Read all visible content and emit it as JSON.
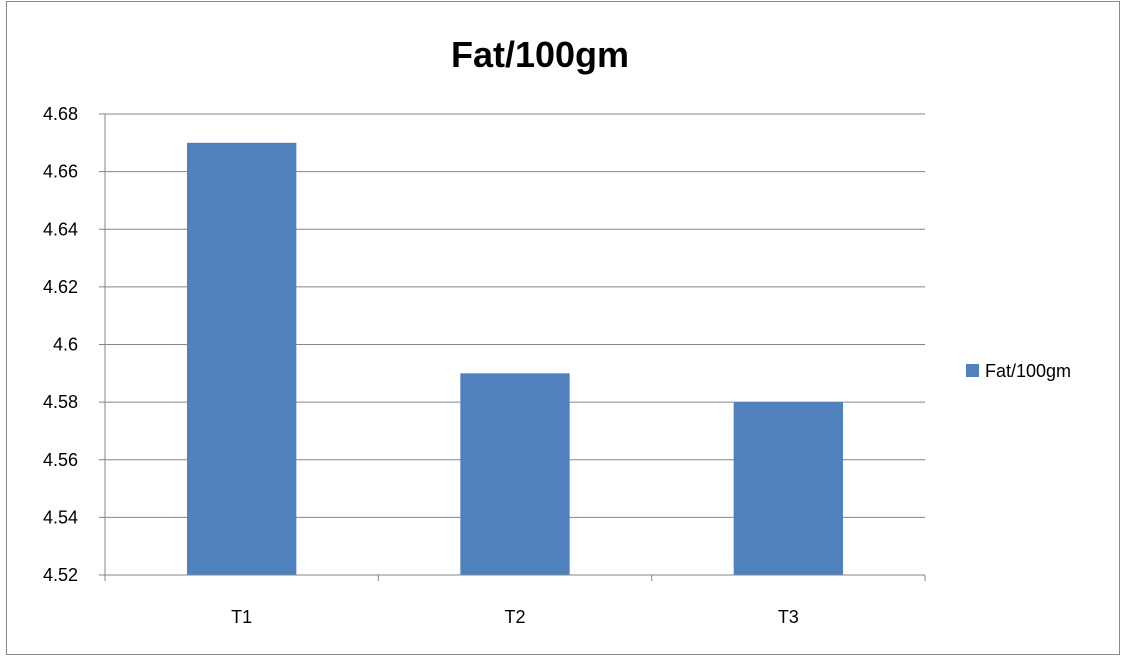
{
  "chart_data": {
    "type": "bar",
    "title": "Fat/100gm",
    "categories": [
      "T1",
      "T2",
      "T3"
    ],
    "series": [
      {
        "name": "Fat/100gm",
        "values": [
          4.67,
          4.59,
          4.58
        ],
        "color": "#4F81BD"
      }
    ],
    "ylim": [
      4.52,
      4.68
    ],
    "yticks": [
      "4.52",
      "4.54",
      "4.56",
      "4.58",
      "4.6",
      "4.62",
      "4.64",
      "4.66",
      "4.68"
    ],
    "grid": true,
    "legend_position": "right"
  }
}
